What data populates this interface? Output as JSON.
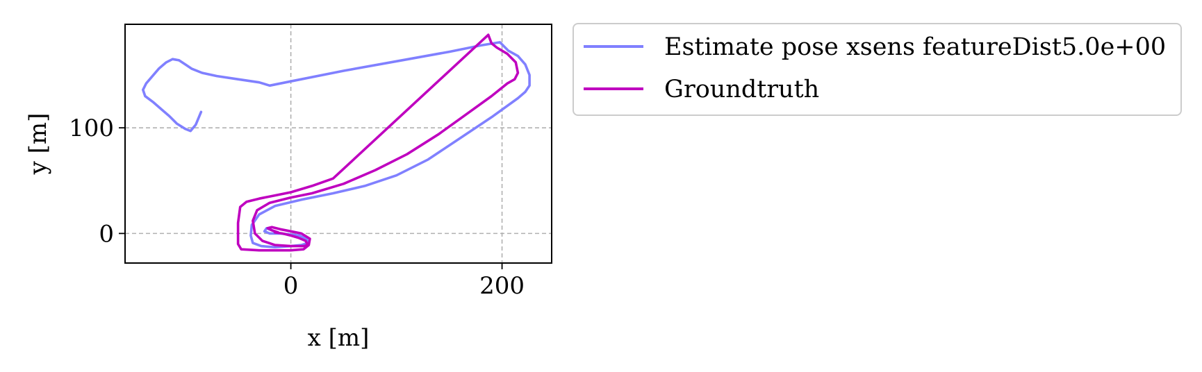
{
  "chart_data": {
    "type": "line",
    "title": "",
    "xlabel": "x [m]",
    "ylabel": "y [m]",
    "xlim": [
      -157,
      247
    ],
    "ylim": [
      -28,
      198
    ],
    "xticks": [
      0,
      200
    ],
    "xtick_labels": [
      "0",
      "200"
    ],
    "yticks": [
      0,
      100
    ],
    "ytick_labels": [
      "0",
      "100"
    ],
    "grid": true,
    "legend_position": "outside-top-right",
    "series": [
      {
        "name": "Estimate pose xsens featureDist5.0e+00",
        "color": "#8080ff",
        "x": [
          -85,
          -90,
          -95,
          -100,
          -108,
          -115,
          -122,
          -130,
          -138,
          -140,
          -137,
          -131,
          -125,
          -118,
          -112,
          -106,
          -100,
          -94,
          -84,
          -70,
          -50,
          -30,
          -20,
          0,
          50,
          100,
          150,
          180,
          198,
          203,
          206,
          215,
          222,
          226,
          226,
          222,
          215,
          190,
          160,
          130,
          100,
          70,
          40,
          10,
          -15,
          -30,
          -37,
          -38,
          -36,
          -28,
          -15,
          0,
          10,
          16,
          15,
          8,
          0,
          -10,
          -20,
          -25,
          -23,
          -18,
          -12
        ],
        "y": [
          115,
          103,
          97,
          99,
          104,
          111,
          117,
          124,
          130,
          136,
          142,
          149,
          156,
          162,
          165,
          164,
          160,
          156,
          152,
          149,
          146,
          143,
          140,
          144,
          154,
          163,
          172,
          178,
          181,
          176,
          173,
          168,
          160,
          150,
          140,
          134,
          128,
          110,
          90,
          70,
          55,
          45,
          38,
          32,
          26,
          18,
          8,
          -2,
          -9,
          -12,
          -13,
          -12,
          -11,
          -9,
          -5,
          -2,
          -1,
          0,
          0,
          2,
          5,
          3,
          1
        ]
      },
      {
        "name": "Groundtruth",
        "color": "#bf00bf",
        "x": [
          -12,
          -18,
          -22,
          -18,
          -10,
          0,
          10,
          18,
          17,
          12,
          0,
          -15,
          -30,
          -47,
          -50,
          -50,
          -48,
          -42,
          -30,
          -15,
          0,
          20,
          40,
          187,
          190,
          195,
          205,
          213,
          215,
          212,
          205,
          190,
          165,
          140,
          110,
          80,
          50,
          20,
          0,
          -20,
          -32,
          -36,
          -34,
          -27,
          -15,
          0,
          12,
          16,
          14,
          7,
          0,
          -8,
          -15
        ],
        "y": [
          1,
          3,
          5,
          6,
          4,
          2,
          0,
          -5,
          -11,
          -15,
          -16,
          -16,
          -16,
          -15,
          -10,
          10,
          25,
          30,
          33,
          36,
          39,
          45,
          52,
          188,
          180,
          176,
          170,
          162,
          152,
          146,
          142,
          130,
          112,
          94,
          75,
          60,
          47,
          38,
          34,
          29,
          22,
          12,
          0,
          -7,
          -11,
          -12,
          -12,
          -11,
          -7,
          -4,
          -2,
          0,
          1
        ]
      }
    ]
  }
}
